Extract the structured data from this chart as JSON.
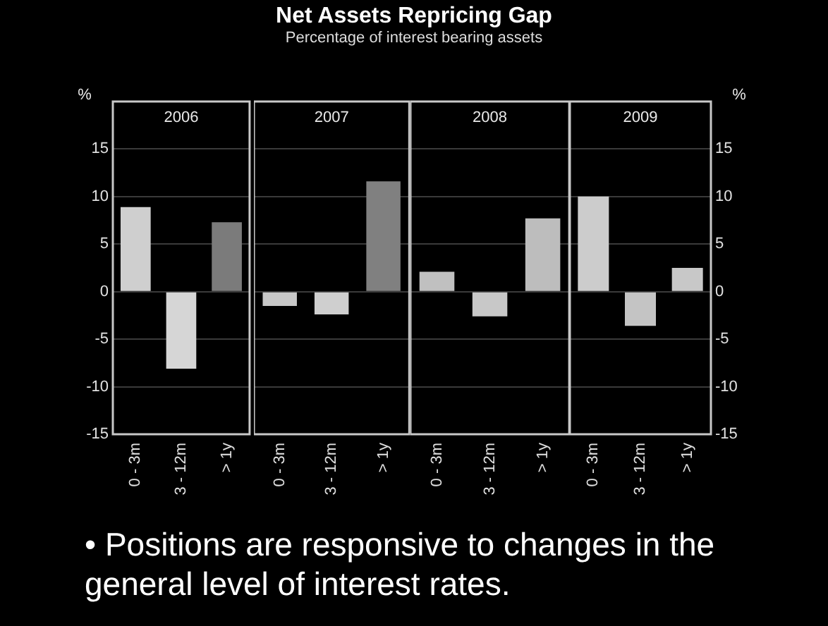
{
  "chart_data": [
    {
      "type": "other",
      "title": "Net Assets Repricing Gap",
      "subtitle": "Percentage of interest bearing assets",
      "annotations": [
        "• Positions are responsive to changes in the general level of interest rates."
      ]
    },
    {
      "type": "bar",
      "xlabel": "2006",
      "ylabel": "%",
      "categories": [
        "0 - 3m",
        "3 - 12m",
        "> 1y"
      ],
      "series": [
        {
          "values": [
            8.9,
            -8.1,
            7.3
          ],
          "colors": [
            "#cfcfcf",
            "#d6d6d6",
            "#7b7b7b"
          ]
        }
      ],
      "ylim": [
        -15,
        20
      ],
      "yticks": [
        -15,
        -10,
        -5,
        0,
        5,
        10,
        15
      ],
      "grid": "y",
      "legend": false
    },
    {
      "type": "bar",
      "xlabel": "2007",
      "categories": [
        "0 - 3m",
        "3 - 12m",
        "> 1y"
      ],
      "series": [
        {
          "values": [
            -1.5,
            -2.4,
            11.6
          ],
          "colors": [
            "#c8c8c8",
            "#cfcfcf",
            "#808080"
          ]
        }
      ],
      "ylim": [
        -15,
        20
      ],
      "yticks": [
        -15,
        -10,
        -5,
        0,
        5,
        10,
        15
      ],
      "grid": "y",
      "legend": false,
      "tick_labels": "x"
    },
    {
      "type": "bar",
      "xlabel": "2008",
      "categories": [
        "0 - 3m",
        "3 - 12m",
        "> 1y"
      ],
      "series": [
        {
          "values": [
            2.1,
            -2.6,
            7.7
          ],
          "colors": [
            "#c0c0c0",
            "#c8c8c8",
            "#bdbdbd"
          ]
        }
      ],
      "ylim": [
        -15,
        20
      ],
      "yticks": [
        -15,
        -10,
        -5,
        0,
        5,
        10,
        15
      ],
      "grid": "y",
      "legend": false,
      "tick_labels": "x"
    },
    {
      "type": "bar",
      "xlabel": "2009",
      "y2label": "%",
      "categories": [
        "0 - 3m",
        "3 - 12m",
        "> 1y"
      ],
      "series": [
        {
          "values": [
            10.0,
            -3.6,
            2.5
          ],
          "colors": [
            "#cccccc",
            "#c4c4c4",
            "#c8c8c8"
          ],
          "axis": "y2"
        }
      ],
      "y2lim": [
        -15,
        20
      ],
      "y2ticks": [
        -15,
        -10,
        -5,
        0,
        5,
        10,
        15
      ],
      "grid": "y",
      "legend": false
    }
  ]
}
